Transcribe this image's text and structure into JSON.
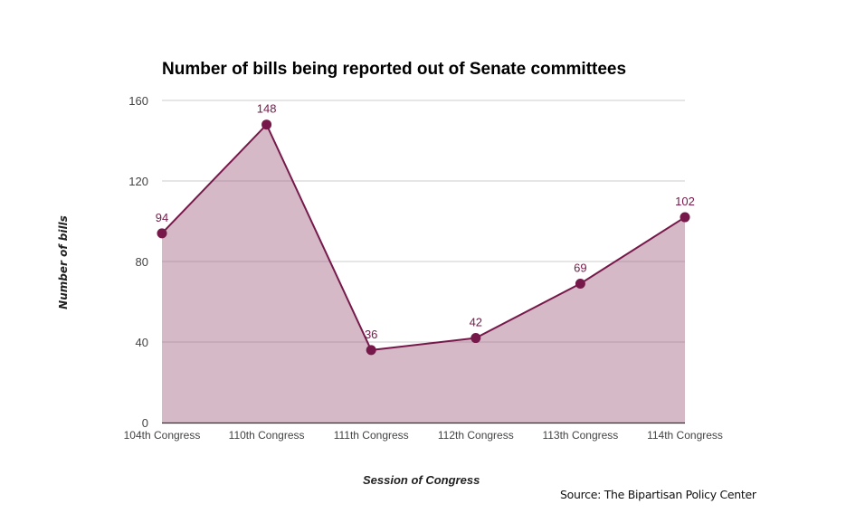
{
  "chart_data": {
    "type": "area",
    "title": "Number of bills being reported out of Senate committees",
    "xlabel": "Session of Congress",
    "ylabel": "Number of bills",
    "categories": [
      "104th Congress",
      "110th Congress",
      "111th Congress",
      "112th Congress",
      "113th Congress",
      "114th Congress"
    ],
    "series": [
      {
        "name": "Number of bills",
        "values": [
          94,
          148,
          36,
          42,
          69,
          102
        ]
      }
    ],
    "ylim": [
      0,
      160
    ],
    "yticks": [
      0,
      40,
      80,
      120,
      160
    ],
    "grid": true,
    "legend": "none",
    "data_labels": true,
    "colors": {
      "line": "#76194a",
      "fill": "#d5b9c7",
      "grid": "#cccccc",
      "axis": "#333333",
      "label": "#76194a",
      "tick": "#444444"
    },
    "source": "Source: The Bipartisan Policy Center"
  }
}
